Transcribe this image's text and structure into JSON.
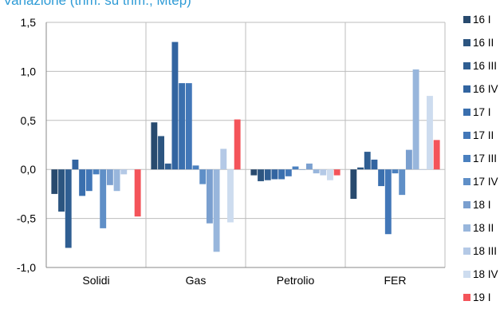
{
  "chart_data": {
    "type": "bar",
    "title": "Variazione (trim. su trim., Mtep)",
    "categories": [
      "Solidi",
      "Gas",
      "Petrolio",
      "FER"
    ],
    "ylim": [
      -1.0,
      1.5
    ],
    "yticks": [
      "-1,0",
      "-0,5",
      "0,0",
      "0,5",
      "1,0",
      "1,5"
    ],
    "ytick_values": [
      -1.0,
      -0.5,
      0.0,
      0.5,
      1.0,
      1.5
    ],
    "grid": true,
    "legend_position": "right",
    "series": [
      {
        "name": "16 I",
        "color": "#284a6e",
        "values": [
          -0.25,
          0.48,
          -0.06,
          -0.3
        ]
      },
      {
        "name": "16 II",
        "color": "#2c5580",
        "values": [
          -0.43,
          0.34,
          -0.12,
          0.02
        ]
      },
      {
        "name": "16 III",
        "color": "#2f5e92",
        "values": [
          -0.8,
          0.06,
          -0.11,
          0.18
        ]
      },
      {
        "name": "16 IV",
        "color": "#3264a0",
        "values": [
          0.1,
          1.3,
          -0.1,
          0.1
        ]
      },
      {
        "name": "17 I",
        "color": "#3a6fae",
        "values": [
          -0.27,
          0.88,
          -0.1,
          -0.17
        ]
      },
      {
        "name": "17 II",
        "color": "#4277b8",
        "values": [
          -0.22,
          0.88,
          -0.07,
          -0.66
        ]
      },
      {
        "name": "17 III",
        "color": "#4a80bf",
        "values": [
          -0.05,
          0.04,
          0.03,
          -0.04
        ]
      },
      {
        "name": "17 IV",
        "color": "#5f8fc7",
        "values": [
          -0.6,
          -0.15,
          0.0,
          -0.26
        ]
      },
      {
        "name": "18 I",
        "color": "#7a9fcf",
        "values": [
          -0.16,
          -0.55,
          0.06,
          0.2
        ]
      },
      {
        "name": "18 II",
        "color": "#98b6dc",
        "values": [
          -0.22,
          -0.84,
          -0.04,
          1.02
        ]
      },
      {
        "name": "18 III",
        "color": "#b4c9e6",
        "values": [
          -0.05,
          0.21,
          -0.06,
          0.0
        ]
      },
      {
        "name": "18 IV",
        "color": "#cddcef",
        "values": [
          0.0,
          -0.54,
          -0.11,
          0.75
        ]
      },
      {
        "name": "19 I",
        "color": "#f4545a",
        "values": [
          -0.48,
          0.51,
          -0.06,
          0.3
        ]
      }
    ]
  }
}
